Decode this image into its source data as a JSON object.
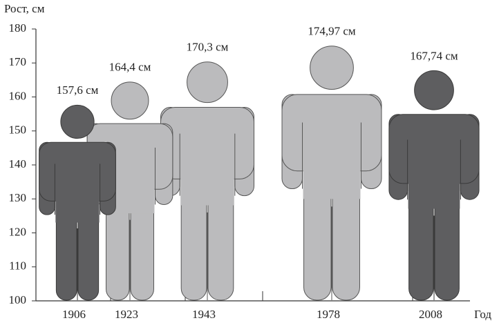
{
  "chart_data": {
    "type": "pictogram",
    "y_label": "Рост, см",
    "x_label": "Год",
    "categories": [
      "1906",
      "1923",
      "1943",
      "1978",
      "2008"
    ],
    "values": [
      157.6,
      164.4,
      170.3,
      174.97,
      167.74
    ],
    "value_labels": [
      "157,6 см",
      "164,4 см",
      "170,3 см",
      "174,97 см",
      "167,74 см"
    ],
    "colors": [
      "#5e5e60",
      "#bbbbbd",
      "#bbbbbd",
      "#bbbbbd",
      "#5e5e60"
    ],
    "ylim": [
      100,
      180
    ],
    "yticks": [
      100,
      110,
      120,
      130,
      140,
      150,
      160,
      170,
      180
    ]
  }
}
